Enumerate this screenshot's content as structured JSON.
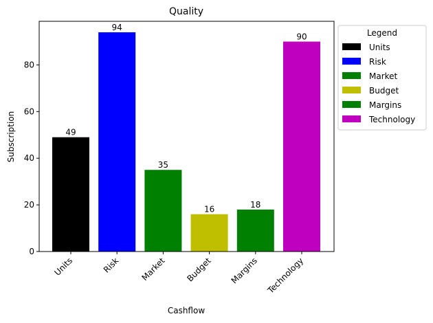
{
  "chart_data": {
    "type": "bar",
    "title": "Quality",
    "xlabel": "Cashflow",
    "ylabel": "Subscription",
    "categories": [
      "Units",
      "Risk",
      "Market",
      "Budget",
      "Margins",
      "Technology"
    ],
    "values": [
      49,
      94,
      35,
      16,
      18,
      90
    ],
    "colors": [
      "#000000",
      "#0000ff",
      "#008000",
      "#bfbf00",
      "#008000",
      "#bf00bf"
    ],
    "ylim": [
      0,
      98.7
    ],
    "yticks": [
      0,
      20,
      40,
      60,
      80
    ],
    "grid": false,
    "legend": {
      "title": "Legend",
      "placement": "outside-right-top",
      "entries": [
        "Units",
        "Risk",
        "Market",
        "Budget",
        "Margins",
        "Technology"
      ]
    }
  }
}
